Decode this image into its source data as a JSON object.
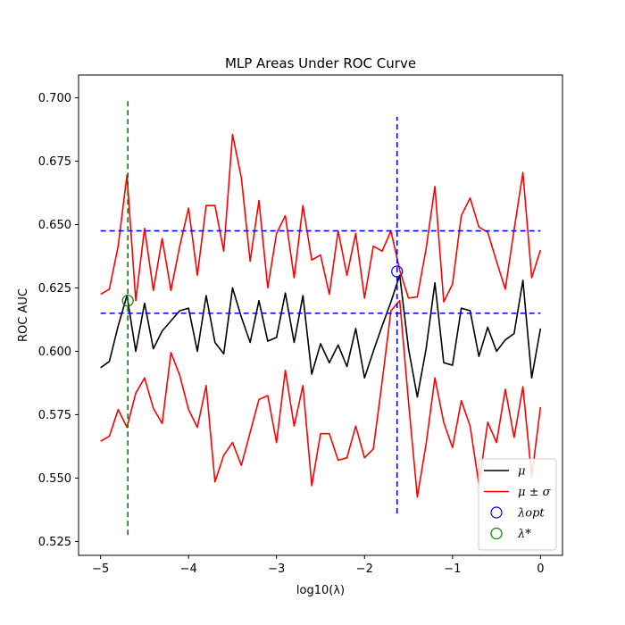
{
  "chart_data": {
    "type": "line",
    "title": "MLP Areas Under ROC Curve",
    "xlabel": "log10(λ)",
    "ylabel": "ROC AUC",
    "xlim": [
      -5.25,
      0.25
    ],
    "ylim": [
      0.5195,
      0.709
    ],
    "xticks": [
      -5,
      -4,
      -3,
      -2,
      -1,
      0
    ],
    "xtick_labels": [
      "−5",
      "−4",
      "−3",
      "−2",
      "−1",
      "0"
    ],
    "yticks": [
      0.525,
      0.55,
      0.575,
      0.6,
      0.625,
      0.65,
      0.675,
      0.7
    ],
    "ytick_labels": [
      "0.525",
      "0.550",
      "0.575",
      "0.600",
      "0.625",
      "0.650",
      "0.675",
      "0.700"
    ],
    "grid": false,
    "legend_position": "lower-right",
    "x": [
      -5.0,
      -4.9,
      -4.8,
      -4.7,
      -4.6,
      -4.5,
      -4.4,
      -4.3,
      -4.2,
      -4.1,
      -4.0,
      -3.9,
      -3.8,
      -3.7,
      -3.6,
      -3.5,
      -3.4,
      -3.3,
      -3.2,
      -3.1,
      -3.0,
      -2.9,
      -2.8,
      -2.7,
      -2.6,
      -2.5,
      -2.4,
      -2.3,
      -2.2,
      -2.1,
      -2.0,
      -1.9,
      -1.8,
      -1.7,
      -1.6,
      -1.5,
      -1.4,
      -1.3,
      -1.2,
      -1.1,
      -1.0,
      -0.9,
      -0.8,
      -0.7,
      -0.6,
      -0.5,
      -0.4,
      -0.3,
      -0.2,
      -0.1,
      0.0
    ],
    "series": [
      {
        "name": "μ",
        "color": "#000000",
        "values": [
          0.5935,
          0.596,
          0.61,
          0.622,
          0.6,
          0.619,
          0.601,
          0.608,
          0.612,
          0.616,
          0.617,
          0.6,
          0.622,
          0.6035,
          0.599,
          0.625,
          0.6135,
          0.6035,
          0.62,
          0.604,
          0.6055,
          0.623,
          0.6035,
          0.622,
          0.591,
          0.603,
          0.5955,
          0.6025,
          0.594,
          0.609,
          0.5895,
          0.6,
          0.61,
          0.6195,
          0.63,
          0.601,
          0.582,
          0.601,
          0.627,
          0.5955,
          0.5945,
          0.617,
          0.616,
          0.598,
          0.6095,
          0.6,
          0.6045,
          0.607,
          0.628,
          0.5895,
          0.609
        ]
      },
      {
        "name": "μ ± σ",
        "color": "#ff0000",
        "values": [
          0.6225,
          0.6245,
          0.6415,
          0.6695,
          0.62,
          0.6485,
          0.624,
          0.6445,
          0.624,
          0.6415,
          0.6565,
          0.63,
          0.6575,
          0.6575,
          0.6395,
          0.6855,
          0.6685,
          0.6355,
          0.6595,
          0.625,
          0.6465,
          0.6535,
          0.629,
          0.6575,
          0.636,
          0.638,
          0.6225,
          0.6475,
          0.63,
          0.6465,
          0.621,
          0.6415,
          0.6395,
          0.6475,
          0.632,
          0.621,
          0.6215,
          0.6405,
          0.665,
          0.6195,
          0.6265,
          0.6535,
          0.6605,
          0.649,
          0.647,
          0.6355,
          0.6245,
          0.648,
          0.6705,
          0.629,
          0.64
        ]
      },
      {
        "name": "μ − σ",
        "color": "#ff0000",
        "values": [
          0.5645,
          0.5665,
          0.577,
          0.57,
          0.5835,
          0.5895,
          0.5775,
          0.5715,
          0.5995,
          0.5905,
          0.577,
          0.57,
          0.5865,
          0.5485,
          0.559,
          0.564,
          0.555,
          0.568,
          0.581,
          0.5825,
          0.564,
          0.5925,
          0.5705,
          0.5865,
          0.547,
          0.5675,
          0.5675,
          0.557,
          0.558,
          0.5705,
          0.558,
          0.5615,
          0.588,
          0.616,
          0.62,
          0.58,
          0.5425,
          0.5635,
          0.5895,
          0.572,
          0.562,
          0.5805,
          0.5705,
          0.5475,
          0.572,
          0.564,
          0.585,
          0.566,
          0.586,
          0.5505,
          0.578
        ]
      }
    ],
    "reference_lines": {
      "horizontal": [
        {
          "y": 0.6475,
          "x_range": [
            -5.0,
            0.0
          ],
          "color": "#0000ff",
          "style": "dashed"
        },
        {
          "y": 0.615,
          "x_range": [
            -5.0,
            0.0
          ],
          "color": "#0000ff",
          "style": "dashed"
        }
      ],
      "vertical": [
        {
          "x": -4.69,
          "y_range": [
            0.5275,
            0.7
          ],
          "color": "#008000",
          "style": "dashed"
        },
        {
          "x": -1.63,
          "y_range": [
            0.536,
            0.6925
          ],
          "color": "#0000ff",
          "style": "dashed"
        }
      ]
    },
    "markers": [
      {
        "name": "λopt",
        "x": -1.63,
        "y": 0.6315,
        "color": "#0000ff"
      },
      {
        "name": "λ*",
        "x": -4.69,
        "y": 0.62,
        "color": "#008000"
      }
    ],
    "legend": [
      {
        "label": "μ",
        "kind": "line",
        "color": "#000000"
      },
      {
        "label": "μ ± σ",
        "kind": "line",
        "color": "#ff0000"
      },
      {
        "label": "λopt",
        "kind": "circle",
        "color": "#0000ff"
      },
      {
        "label": "λ*",
        "kind": "circle",
        "color": "#008000"
      }
    ]
  }
}
